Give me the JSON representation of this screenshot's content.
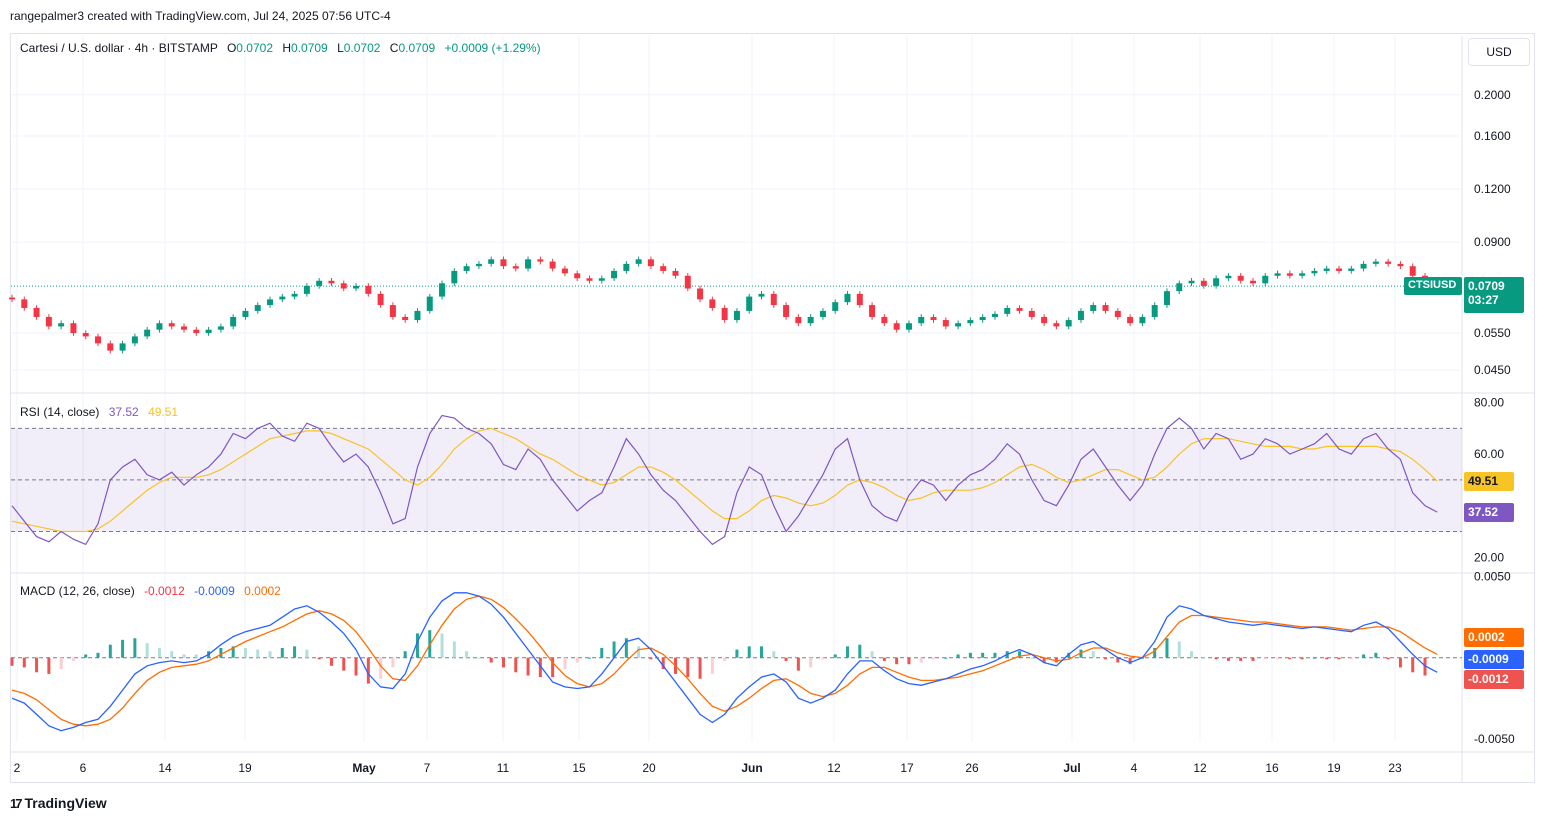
{
  "header": {
    "text": "rangepalmer3 created with TradingView.com, Jul 24, 2025 07:56 UTC-4"
  },
  "footer": {
    "brand": "TradingView",
    "mark": "17"
  },
  "currency_button": "USD",
  "colors": {
    "up": "#089981",
    "down": "#f23645",
    "rsi": "#7e57c2",
    "rsi_ma": "#f7c325",
    "macd": "#2962ff",
    "signal": "#ff6d00",
    "hist_up": "#26a69a",
    "hist_down": "#ef5350",
    "price_badge": "#089981"
  },
  "price_legend": {
    "symbol": "Cartesi / U.S. dollar · 4h · BITSTAMP",
    "o_label": "O",
    "o": "0.0702",
    "h_label": "H",
    "h": "0.0709",
    "l_label": "L",
    "l": "0.0702",
    "c_label": "C",
    "c": "0.0709",
    "change": "+0.0009 (+1.29%)"
  },
  "price_badge": {
    "ticker": "CTSIUSD",
    "price": "0.0709",
    "countdown": "03:27"
  },
  "rsi_legend": {
    "label": "RSI (14, close)",
    "rsi": "37.52",
    "ma": "49.51"
  },
  "macd_legend": {
    "label": "MACD (12, 26, close)",
    "hist": "-0.0012",
    "macd": "-0.0009",
    "signal": "0.0002"
  },
  "chart_data": [
    {
      "type": "candlestick",
      "scale": "log",
      "yticks": [
        "0.2000",
        "0.1600",
        "0.1200",
        "0.0900",
        "0.0550",
        "0.0450"
      ],
      "ytick_values": [
        0.2,
        0.16,
        0.12,
        0.09,
        0.055,
        0.045
      ],
      "ylim": [
        0.0415,
        0.235
      ],
      "last_price": 0.0709,
      "close_path": [
        0.066,
        0.063,
        0.06,
        0.057,
        0.058,
        0.055,
        0.054,
        0.052,
        0.05,
        0.052,
        0.054,
        0.056,
        0.058,
        0.057,
        0.056,
        0.055,
        0.056,
        0.057,
        0.06,
        0.062,
        0.064,
        0.066,
        0.067,
        0.068,
        0.071,
        0.073,
        0.072,
        0.07,
        0.071,
        0.068,
        0.064,
        0.06,
        0.059,
        0.062,
        0.067,
        0.072,
        0.077,
        0.079,
        0.08,
        0.082,
        0.079,
        0.078,
        0.082,
        0.081,
        0.078,
        0.076,
        0.074,
        0.073,
        0.074,
        0.077,
        0.08,
        0.082,
        0.079,
        0.077,
        0.075,
        0.07,
        0.066,
        0.063,
        0.059,
        0.062,
        0.067,
        0.068,
        0.064,
        0.06,
        0.058,
        0.06,
        0.062,
        0.065,
        0.068,
        0.064,
        0.06,
        0.058,
        0.056,
        0.058,
        0.06,
        0.059,
        0.057,
        0.058,
        0.059,
        0.06,
        0.061,
        0.063,
        0.062,
        0.06,
        0.058,
        0.057,
        0.059,
        0.062,
        0.064,
        0.062,
        0.06,
        0.058,
        0.06,
        0.064,
        0.069,
        0.072,
        0.073,
        0.071,
        0.074,
        0.075,
        0.073,
        0.072,
        0.075,
        0.076,
        0.075,
        0.076,
        0.077,
        0.078,
        0.077,
        0.078,
        0.08,
        0.081,
        0.08,
        0.079,
        0.075,
        0.0709
      ]
    },
    {
      "type": "line",
      "name": "RSI (14, close)",
      "yticks": [
        "80.00",
        "60.00",
        "20.00"
      ],
      "ytick_values": [
        80,
        60,
        20
      ],
      "ylim": [
        17,
        81
      ],
      "bands": [
        70,
        50,
        30
      ],
      "series": [
        {
          "name": "RSI",
          "last": 37.52,
          "values": [
            40,
            34,
            28,
            26,
            30,
            27,
            25,
            33,
            50,
            55,
            58,
            52,
            50,
            53,
            48,
            52,
            55,
            60,
            68,
            66,
            70,
            72,
            67,
            65,
            72,
            70,
            63,
            57,
            60,
            55,
            45,
            33,
            35,
            55,
            68,
            75,
            74,
            70,
            68,
            64,
            56,
            54,
            62,
            58,
            50,
            44,
            38,
            42,
            45,
            55,
            66,
            60,
            52,
            46,
            42,
            36,
            30,
            25,
            28,
            45,
            55,
            52,
            40,
            30,
            36,
            44,
            52,
            62,
            66,
            50,
            40,
            36,
            34,
            44,
            50,
            48,
            42,
            48,
            52,
            54,
            58,
            64,
            60,
            50,
            42,
            40,
            48,
            58,
            62,
            55,
            48,
            42,
            48,
            60,
            70,
            74,
            70,
            62,
            68,
            66,
            58,
            60,
            66,
            64,
            60,
            62,
            64,
            68,
            62,
            60,
            66,
            68,
            62,
            58,
            45,
            40,
            37.52
          ]
        },
        {
          "name": "RSI-based MA",
          "last": 49.51,
          "values": [
            34,
            33,
            32,
            31,
            30,
            30,
            30,
            31,
            34,
            38,
            42,
            46,
            49,
            51,
            51,
            51,
            52,
            54,
            57,
            60,
            63,
            66,
            67,
            68,
            69,
            69,
            68,
            66,
            64,
            62,
            58,
            54,
            50,
            48,
            51,
            56,
            62,
            66,
            69,
            70,
            68,
            66,
            63,
            60,
            58,
            55,
            52,
            50,
            48,
            49,
            52,
            55,
            55,
            53,
            50,
            46,
            42,
            38,
            35,
            35,
            38,
            42,
            44,
            43,
            41,
            40,
            41,
            44,
            48,
            50,
            49,
            47,
            44,
            42,
            43,
            45,
            46,
            46,
            46,
            47,
            49,
            52,
            55,
            56,
            54,
            51,
            49,
            50,
            52,
            54,
            54,
            52,
            50,
            51,
            55,
            60,
            64,
            66,
            66,
            66,
            65,
            64,
            63,
            63,
            63,
            62,
            62,
            63,
            63,
            63,
            63,
            63,
            62,
            61,
            58,
            54,
            49.51
          ]
        }
      ]
    },
    {
      "type": "line",
      "name": "MACD (12, 26, close)",
      "yticks": [
        "0.0050",
        "-0.0050"
      ],
      "ytick_values": [
        0.005,
        -0.005
      ],
      "ylim": [
        -0.0052,
        0.0051
      ],
      "series": [
        {
          "name": "MACD",
          "last": -0.0009,
          "values": [
            -0.0025,
            -0.0028,
            -0.0035,
            -0.0042,
            -0.0045,
            -0.0043,
            -0.004,
            -0.0038,
            -0.003,
            -0.002,
            -0.001,
            -0.0005,
            -0.0003,
            -0.0002,
            -0.0003,
            -0.0002,
            0.0002,
            0.0008,
            0.0013,
            0.0016,
            0.0018,
            0.002,
            0.0025,
            0.003,
            0.0032,
            0.0028,
            0.0022,
            0.0015,
            0.0005,
            -0.001,
            -0.0018,
            -0.0019,
            -0.001,
            0.001,
            0.0025,
            0.0035,
            0.004,
            0.004,
            0.0038,
            0.0033,
            0.0025,
            0.0015,
            0.0005,
            -0.0005,
            -0.0015,
            -0.0018,
            -0.0019,
            -0.0018,
            -0.001,
            0.0,
            0.001,
            0.0012,
            0.0005,
            -0.0005,
            -0.0015,
            -0.0025,
            -0.0035,
            -0.004,
            -0.0035,
            -0.0025,
            -0.0018,
            -0.0012,
            -0.001,
            -0.0015,
            -0.0025,
            -0.0028,
            -0.0025,
            -0.002,
            -0.001,
            -0.0002,
            -0.0002,
            -0.0008,
            -0.0013,
            -0.0016,
            -0.0017,
            -0.0015,
            -0.0013,
            -0.001,
            -0.0007,
            -0.0005,
            -0.0002,
            0.0002,
            0.0005,
            0.0002,
            -0.0003,
            -0.0005,
            0.0002,
            0.0008,
            0.001,
            0.0005,
            0.0,
            -0.0003,
            0.0,
            0.001,
            0.0025,
            0.0032,
            0.003,
            0.0026,
            0.0024,
            0.0022,
            0.0021,
            0.002,
            0.0021,
            0.002,
            0.0019,
            0.0018,
            0.0019,
            0.0018,
            0.0017,
            0.0016,
            0.002,
            0.0022,
            0.0018,
            0.001,
            0.0002,
            -0.0005,
            -0.0009
          ]
        },
        {
          "name": "Signal",
          "last": 0.0002,
          "values": [
            -0.002,
            -0.0022,
            -0.0026,
            -0.0032,
            -0.0038,
            -0.0041,
            -0.0042,
            -0.0041,
            -0.0038,
            -0.0031,
            -0.0022,
            -0.0014,
            -0.0009,
            -0.0006,
            -0.0005,
            -0.0004,
            -0.0002,
            0.0002,
            0.0006,
            0.001,
            0.0013,
            0.0016,
            0.0019,
            0.0023,
            0.0027,
            0.0029,
            0.0027,
            0.0023,
            0.0016,
            0.0006,
            -0.0005,
            -0.0013,
            -0.0014,
            -0.0005,
            0.0008,
            0.002,
            0.003,
            0.0036,
            0.0038,
            0.0036,
            0.0031,
            0.0024,
            0.0016,
            0.0007,
            -0.0003,
            -0.0011,
            -0.0016,
            -0.0018,
            -0.0016,
            -0.001,
            -0.0002,
            0.0005,
            0.0006,
            0.0002,
            -0.0005,
            -0.0013,
            -0.0022,
            -0.003,
            -0.0033,
            -0.003,
            -0.0025,
            -0.0019,
            -0.0014,
            -0.0013,
            -0.0017,
            -0.0022,
            -0.0024,
            -0.0022,
            -0.0017,
            -0.001,
            -0.0006,
            -0.0006,
            -0.0009,
            -0.0012,
            -0.0014,
            -0.0014,
            -0.0013,
            -0.0012,
            -0.001,
            -0.0008,
            -0.0005,
            -0.0002,
            0.0001,
            0.0002,
            0.0,
            -0.0002,
            -0.0001,
            0.0003,
            0.0006,
            0.0006,
            0.0003,
            0.0001,
            0.0,
            0.0004,
            0.0013,
            0.0022,
            0.0026,
            0.0026,
            0.0025,
            0.0024,
            0.0023,
            0.0022,
            0.0022,
            0.0021,
            0.002,
            0.0019,
            0.0019,
            0.0019,
            0.0018,
            0.0017,
            0.0018,
            0.0019,
            0.0019,
            0.0016,
            0.0011,
            0.0006,
            0.0002
          ]
        }
      ]
    },
    {
      "type": "axis",
      "x_ticks": [
        "2",
        "6",
        "14",
        "19",
        "May",
        "7",
        "11",
        "15",
        "20",
        "Jun",
        "12",
        "17",
        "26",
        "Jul",
        "4",
        "12",
        "16",
        "19",
        "23"
      ],
      "x_bold": [
        "May",
        "Jun",
        "Jul"
      ]
    }
  ]
}
